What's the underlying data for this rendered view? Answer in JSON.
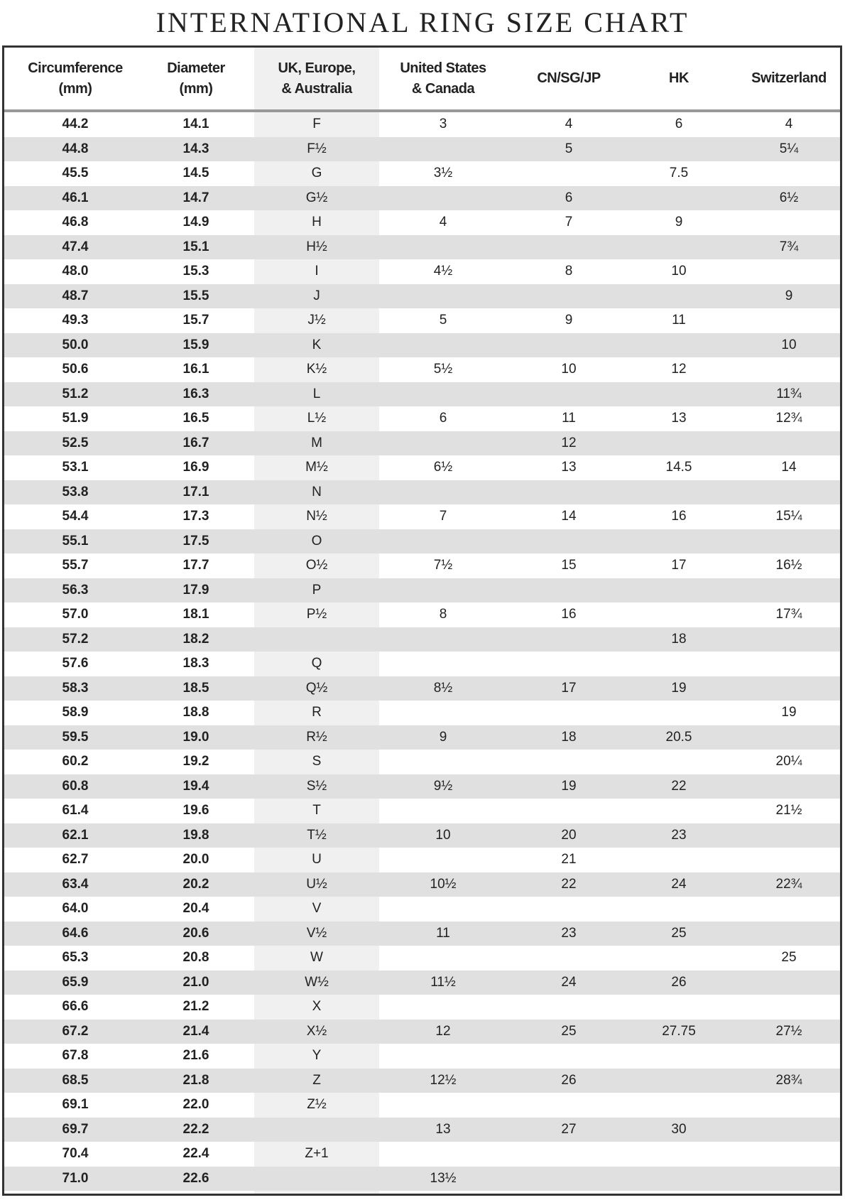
{
  "title": "INTERNATIONAL RING SIZE CHART",
  "headers": [
    "Circumference\n(mm)",
    "Diameter\n(mm)",
    "UK, Europe,\n& Australia",
    "United States\n& Canada",
    "CN/SG/JP",
    "HK",
    "Switzerland"
  ],
  "rows": [
    [
      "44.2",
      "14.1",
      "F",
      "3",
      "4",
      "6",
      "4"
    ],
    [
      "44.8",
      "14.3",
      "F½",
      "",
      "5",
      "",
      "5¼"
    ],
    [
      "45.5",
      "14.5",
      "G",
      "3½",
      "",
      "7.5",
      ""
    ],
    [
      "46.1",
      "14.7",
      "G½",
      "",
      "6",
      "",
      "6½"
    ],
    [
      "46.8",
      "14.9",
      "H",
      "4",
      "7",
      "9",
      ""
    ],
    [
      "47.4",
      "15.1",
      "H½",
      "",
      "",
      "",
      "7¾"
    ],
    [
      "48.0",
      "15.3",
      "I",
      "4½",
      "8",
      "10",
      ""
    ],
    [
      "48.7",
      "15.5",
      "J",
      "",
      "",
      "",
      "9"
    ],
    [
      "49.3",
      "15.7",
      "J½",
      "5",
      "9",
      "11",
      ""
    ],
    [
      "50.0",
      "15.9",
      "K",
      "",
      "",
      "",
      "10"
    ],
    [
      "50.6",
      "16.1",
      "K½",
      "5½",
      "10",
      "12",
      ""
    ],
    [
      "51.2",
      "16.3",
      "L",
      "",
      "",
      "",
      "11¾"
    ],
    [
      "51.9",
      "16.5",
      "L½",
      "6",
      "11",
      "13",
      "12¾"
    ],
    [
      "52.5",
      "16.7",
      "M",
      "",
      "12",
      "",
      ""
    ],
    [
      "53.1",
      "16.9",
      "M½",
      "6½",
      "13",
      "14.5",
      "14"
    ],
    [
      "53.8",
      "17.1",
      "N",
      "",
      "",
      "",
      ""
    ],
    [
      "54.4",
      "17.3",
      "N½",
      "7",
      "14",
      "16",
      "15¼"
    ],
    [
      "55.1",
      "17.5",
      "O",
      "",
      "",
      "",
      ""
    ],
    [
      "55.7",
      "17.7",
      "O½",
      "7½",
      "15",
      "17",
      "16½"
    ],
    [
      "56.3",
      "17.9",
      "P",
      "",
      "",
      "",
      ""
    ],
    [
      "57.0",
      "18.1",
      "P½",
      "8",
      "16",
      "",
      "17¾"
    ],
    [
      "57.2",
      "18.2",
      "",
      "",
      "",
      "18",
      ""
    ],
    [
      "57.6",
      "18.3",
      "Q",
      "",
      "",
      "",
      ""
    ],
    [
      "58.3",
      "18.5",
      "Q½",
      "8½",
      "17",
      "19",
      ""
    ],
    [
      "58.9",
      "18.8",
      "R",
      "",
      "",
      "",
      "19"
    ],
    [
      "59.5",
      "19.0",
      "R½",
      "9",
      "18",
      "20.5",
      ""
    ],
    [
      "60.2",
      "19.2",
      "S",
      "",
      "",
      "",
      "20¼"
    ],
    [
      "60.8",
      "19.4",
      "S½",
      "9½",
      "19",
      "22",
      ""
    ],
    [
      "61.4",
      "19.6",
      "T",
      "",
      "",
      "",
      "21½"
    ],
    [
      "62.1",
      "19.8",
      "T½",
      "10",
      "20",
      "23",
      ""
    ],
    [
      "62.7",
      "20.0",
      "U",
      "",
      "21",
      "",
      ""
    ],
    [
      "63.4",
      "20.2",
      "U½",
      "10½",
      "22",
      "24",
      "22¾"
    ],
    [
      "64.0",
      "20.4",
      "V",
      "",
      "",
      "",
      ""
    ],
    [
      "64.6",
      "20.6",
      "V½",
      "11",
      "23",
      "25",
      ""
    ],
    [
      "65.3",
      "20.8",
      "W",
      "",
      "",
      "",
      "25"
    ],
    [
      "65.9",
      "21.0",
      "W½",
      "11½",
      "24",
      "26",
      ""
    ],
    [
      "66.6",
      "21.2",
      "X",
      "",
      "",
      "",
      ""
    ],
    [
      "67.2",
      "21.4",
      "X½",
      "12",
      "25",
      "27.75",
      "27½"
    ],
    [
      "67.8",
      "21.6",
      "Y",
      "",
      "",
      "",
      ""
    ],
    [
      "68.5",
      "21.8",
      "Z",
      "12½",
      "26",
      "",
      "28¾"
    ],
    [
      "69.1",
      "22.0",
      "Z½",
      "",
      "",
      "",
      ""
    ],
    [
      "69.7",
      "22.2",
      "",
      "13",
      "27",
      "30",
      ""
    ],
    [
      "70.4",
      "22.4",
      "Z+1",
      "",
      "",
      "",
      ""
    ],
    [
      "71.0",
      "22.6",
      "",
      "13½",
      "",
      "",
      ""
    ]
  ],
  "colors": {
    "row_alt": "#e0e0e0",
    "border": "#333333"
  }
}
